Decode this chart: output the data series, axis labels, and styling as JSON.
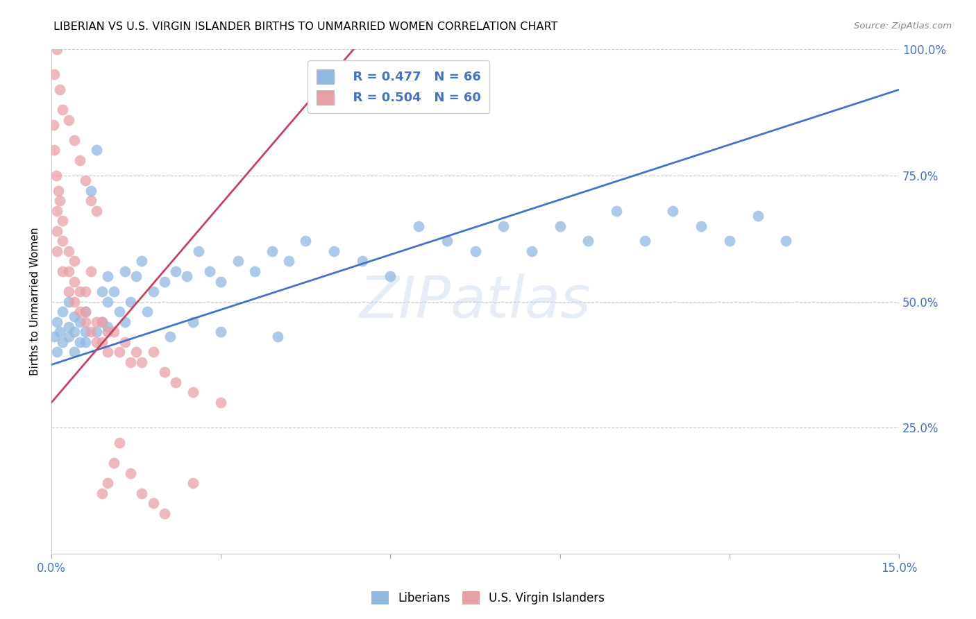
{
  "title": "LIBERIAN VS U.S. VIRGIN ISLANDER BIRTHS TO UNMARRIED WOMEN CORRELATION CHART",
  "source": "Source: ZipAtlas.com",
  "ylabel": "Births to Unmarried Women",
  "xmin": 0.0,
  "xmax": 0.15,
  "ymin": 0.0,
  "ymax": 1.0,
  "ytick_positions": [
    0.0,
    0.25,
    0.5,
    0.75,
    1.0
  ],
  "ytick_labels": [
    "",
    "25.0%",
    "50.0%",
    "75.0%",
    "100.0%"
  ],
  "xtick_positions": [
    0.0,
    0.03,
    0.06,
    0.09,
    0.12,
    0.15
  ],
  "xtick_labels": [
    "0.0%",
    "",
    "",
    "",
    "",
    "15.0%"
  ],
  "blue_color": "#92b8e0",
  "pink_color": "#e8a0a8",
  "blue_line_color": "#4472c4",
  "pink_line_color": "#c84060",
  "legend_R_blue": "R = 0.477",
  "legend_N_blue": "N = 66",
  "legend_R_pink": "R = 0.504",
  "legend_N_pink": "N = 60",
  "watermark_text": "ZIPatlas",
  "blue_trend": [
    0.0,
    0.15,
    0.375,
    0.92
  ],
  "pink_trend": [
    0.0,
    0.055,
    0.3,
    1.02
  ],
  "blue_x": [
    0.0005,
    0.001,
    0.001,
    0.0015,
    0.002,
    0.002,
    0.003,
    0.003,
    0.003,
    0.004,
    0.004,
    0.005,
    0.005,
    0.006,
    0.006,
    0.007,
    0.008,
    0.009,
    0.009,
    0.01,
    0.01,
    0.011,
    0.012,
    0.013,
    0.014,
    0.015,
    0.016,
    0.018,
    0.02,
    0.022,
    0.024,
    0.026,
    0.028,
    0.03,
    0.033,
    0.036,
    0.039,
    0.042,
    0.045,
    0.05,
    0.055,
    0.06,
    0.065,
    0.07,
    0.075,
    0.08,
    0.085,
    0.09,
    0.095,
    0.1,
    0.105,
    0.11,
    0.115,
    0.12,
    0.125,
    0.13,
    0.004,
    0.006,
    0.008,
    0.01,
    0.013,
    0.017,
    0.021,
    0.025,
    0.03,
    0.04
  ],
  "blue_y": [
    0.43,
    0.4,
    0.46,
    0.44,
    0.42,
    0.48,
    0.45,
    0.5,
    0.43,
    0.44,
    0.47,
    0.42,
    0.46,
    0.44,
    0.48,
    0.72,
    0.8,
    0.46,
    0.52,
    0.5,
    0.55,
    0.52,
    0.48,
    0.56,
    0.5,
    0.55,
    0.58,
    0.52,
    0.54,
    0.56,
    0.55,
    0.6,
    0.56,
    0.54,
    0.58,
    0.56,
    0.6,
    0.58,
    0.62,
    0.6,
    0.58,
    0.55,
    0.65,
    0.62,
    0.6,
    0.65,
    0.6,
    0.65,
    0.62,
    0.68,
    0.62,
    0.68,
    0.65,
    0.62,
    0.67,
    0.62,
    0.4,
    0.42,
    0.44,
    0.45,
    0.46,
    0.48,
    0.43,
    0.46,
    0.44,
    0.43
  ],
  "pink_x": [
    0.0003,
    0.0005,
    0.0008,
    0.001,
    0.001,
    0.001,
    0.0012,
    0.0015,
    0.002,
    0.002,
    0.002,
    0.003,
    0.003,
    0.003,
    0.004,
    0.004,
    0.004,
    0.005,
    0.005,
    0.006,
    0.006,
    0.006,
    0.007,
    0.007,
    0.008,
    0.008,
    0.009,
    0.009,
    0.01,
    0.01,
    0.011,
    0.012,
    0.013,
    0.014,
    0.015,
    0.016,
    0.018,
    0.02,
    0.022,
    0.025,
    0.0005,
    0.001,
    0.0015,
    0.002,
    0.003,
    0.004,
    0.005,
    0.006,
    0.007,
    0.008,
    0.009,
    0.01,
    0.011,
    0.012,
    0.014,
    0.016,
    0.018,
    0.02,
    0.025,
    0.03
  ],
  "pink_y": [
    0.85,
    0.8,
    0.75,
    0.68,
    0.6,
    0.64,
    0.72,
    0.7,
    0.56,
    0.62,
    0.66,
    0.6,
    0.56,
    0.52,
    0.58,
    0.54,
    0.5,
    0.52,
    0.48,
    0.52,
    0.46,
    0.48,
    0.56,
    0.44,
    0.46,
    0.42,
    0.46,
    0.42,
    0.44,
    0.4,
    0.44,
    0.4,
    0.42,
    0.38,
    0.4,
    0.38,
    0.4,
    0.36,
    0.34,
    0.32,
    0.95,
    1.0,
    0.92,
    0.88,
    0.86,
    0.82,
    0.78,
    0.74,
    0.7,
    0.68,
    0.12,
    0.14,
    0.18,
    0.22,
    0.16,
    0.12,
    0.1,
    0.08,
    0.14,
    0.3
  ]
}
